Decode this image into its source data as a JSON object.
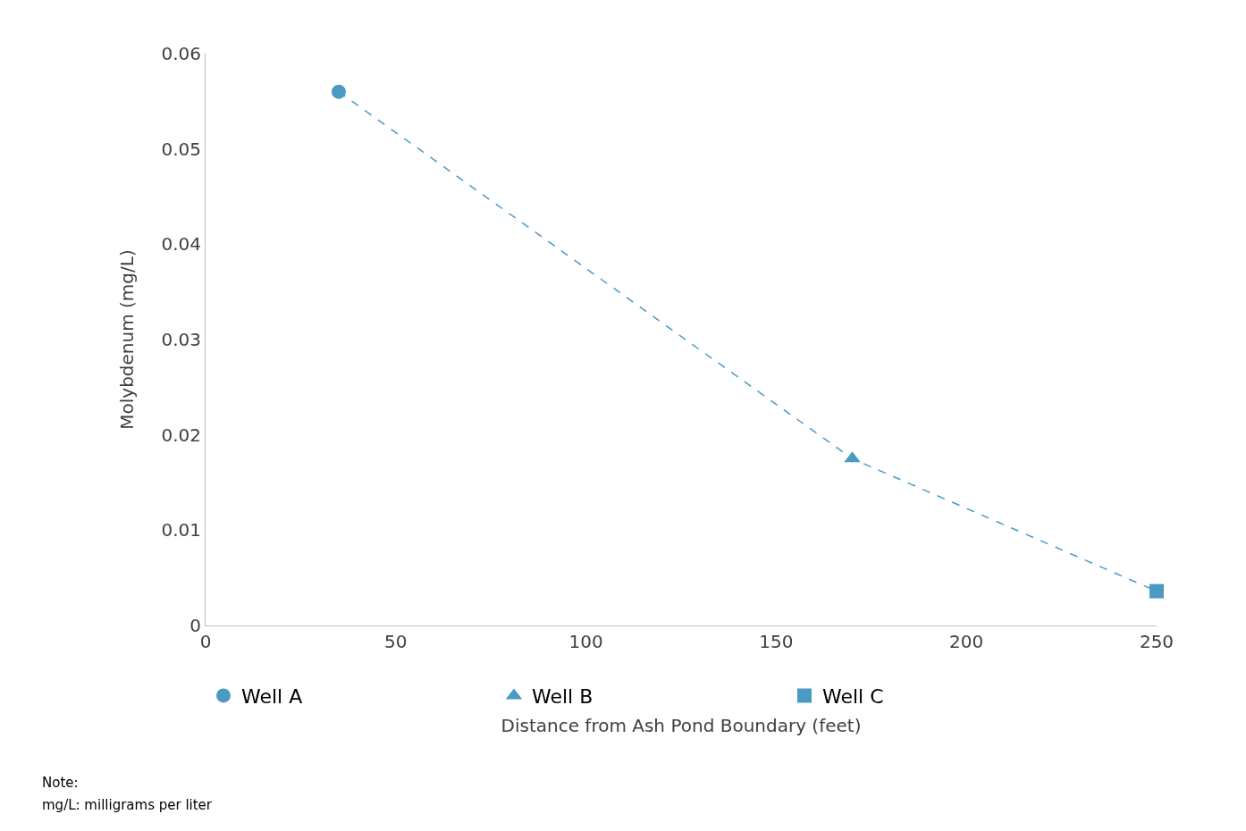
{
  "chart_data": {
    "type": "scatter",
    "xlabel": "Distance from Ash Pond Boundary (feet)",
    "ylabel": "Molybdenum (mg/L)",
    "xlim": [
      0,
      250
    ],
    "xticks": [
      0,
      50,
      100,
      150,
      200,
      250
    ],
    "ylim": [
      0,
      0.06
    ],
    "yticks": [
      0,
      0.01,
      0.02,
      0.03,
      0.04,
      0.05,
      0.06
    ],
    "legend": "bottom",
    "series": [
      {
        "type": "line",
        "x": [
          35,
          170,
          250
        ],
        "values": [
          0.056,
          0.0175,
          0.0036
        ],
        "color": "#4a9ac1",
        "line_style": "dashed",
        "marker": "none"
      },
      {
        "name": "Well A",
        "x": [
          35
        ],
        "values": [
          0.056
        ],
        "color": "#4a9ac1",
        "marker": "circle"
      },
      {
        "name": "Well B",
        "x": [
          170
        ],
        "values": [
          0.0175
        ],
        "color": "#4a9ac1",
        "marker": "triangle"
      },
      {
        "name": "Well C",
        "x": [
          250
        ],
        "values": [
          0.0036
        ],
        "color": "#4a9ac1",
        "marker": "square"
      }
    ],
    "annotations": [
      "Note:",
      "mg/L: milligrams per liter"
    ]
  }
}
